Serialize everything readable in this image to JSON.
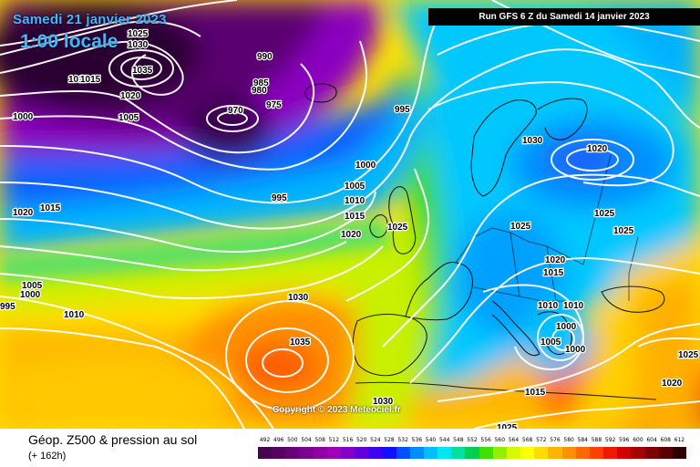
{
  "title": {
    "date": "Samedi 21 janvier 2023",
    "time": "1:00 locale",
    "run": "Run GFS 6 Z du Samedi 14 janvier 2023"
  },
  "copyright": "Copyright © 2023 Meteociel.fr",
  "legend": {
    "title": "Géop. Z500 & pression au sol",
    "subtitle": "(+ 162h)",
    "scale": [
      {
        "v": "492",
        "c": "#4a0050"
      },
      {
        "v": "496",
        "c": "#5a0062"
      },
      {
        "v": "500",
        "c": "#6a0078"
      },
      {
        "v": "504",
        "c": "#7a008e"
      },
      {
        "v": "508",
        "c": "#8e00a4"
      },
      {
        "v": "512",
        "c": "#a000b8"
      },
      {
        "v": "516",
        "c": "#8200c8"
      },
      {
        "v": "520",
        "c": "#6400dc"
      },
      {
        "v": "524",
        "c": "#4000f0"
      },
      {
        "v": "528",
        "c": "#1010ff"
      },
      {
        "v": "532",
        "c": "#0050ff"
      },
      {
        "v": "536",
        "c": "#008cff"
      },
      {
        "v": "540",
        "c": "#00beff"
      },
      {
        "v": "544",
        "c": "#00e6f0"
      },
      {
        "v": "548",
        "c": "#00e0a0"
      },
      {
        "v": "552",
        "c": "#00d050"
      },
      {
        "v": "556",
        "c": "#40e000"
      },
      {
        "v": "560",
        "c": "#90f000"
      },
      {
        "v": "564",
        "c": "#d8f800"
      },
      {
        "v": "568",
        "c": "#ffff00"
      },
      {
        "v": "572",
        "c": "#ffdc00"
      },
      {
        "v": "576",
        "c": "#ffb400"
      },
      {
        "v": "580",
        "c": "#ff9000"
      },
      {
        "v": "584",
        "c": "#ff6800"
      },
      {
        "v": "588",
        "c": "#ff4000"
      },
      {
        "v": "592",
        "c": "#f01800"
      },
      {
        "v": "596",
        "c": "#d00000"
      },
      {
        "v": "600",
        "c": "#a80000"
      },
      {
        "v": "604",
        "c": "#800000"
      },
      {
        "v": "608",
        "c": "#580000"
      },
      {
        "v": "612",
        "c": "#300000"
      }
    ]
  },
  "isobar_labels": [
    "1025",
    "1030",
    "1035",
    "1010",
    "1015",
    "1020",
    "1005",
    "990",
    "985",
    "980",
    "975",
    "970",
    "995",
    "995",
    "1000",
    "1000",
    "1005",
    "1010",
    "1015",
    "1020",
    "1025",
    "1020",
    "1015",
    "1010",
    "1005",
    "1000",
    "995",
    "1030",
    "1035",
    "1030",
    "1030",
    "1020",
    "1025",
    "1025",
    "1025",
    "1020",
    "1015",
    "1010",
    "1000",
    "1005",
    "1000",
    "1015",
    "1025",
    "1025",
    "1020",
    "1010"
  ]
}
